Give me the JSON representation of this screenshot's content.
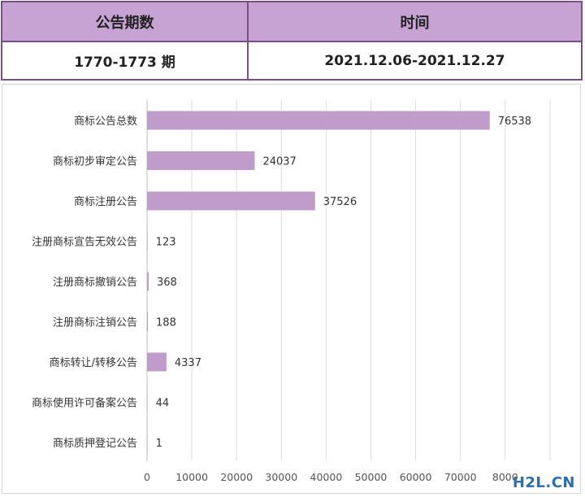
{
  "table": {
    "headers": [
      "公告期数",
      "时间"
    ],
    "row": [
      "1770-1773 期",
      "2021.12.06-2021.12.27"
    ]
  },
  "chart_data": {
    "type": "bar",
    "orientation": "horizontal",
    "categories": [
      "商标公告总数",
      "商标初步审定公告",
      "商标注册公告",
      "注册商标宣告无效公告",
      "注册商标撤销公告",
      "注册商标注销公告",
      "商标转让/转移公告",
      "商标使用许可备案公告",
      "商标质押登记公告"
    ],
    "values": [
      76538,
      24037,
      37526,
      123,
      368,
      188,
      4337,
      44,
      1
    ],
    "xticks": [
      "0",
      "10000",
      "20000",
      "30000",
      "40000",
      "50000",
      "60000",
      "70000",
      "8000"
    ],
    "xlim": [
      0,
      90000
    ],
    "grid": true,
    "bar_color": "#c09ccb"
  },
  "watermark": "H2L.CN"
}
